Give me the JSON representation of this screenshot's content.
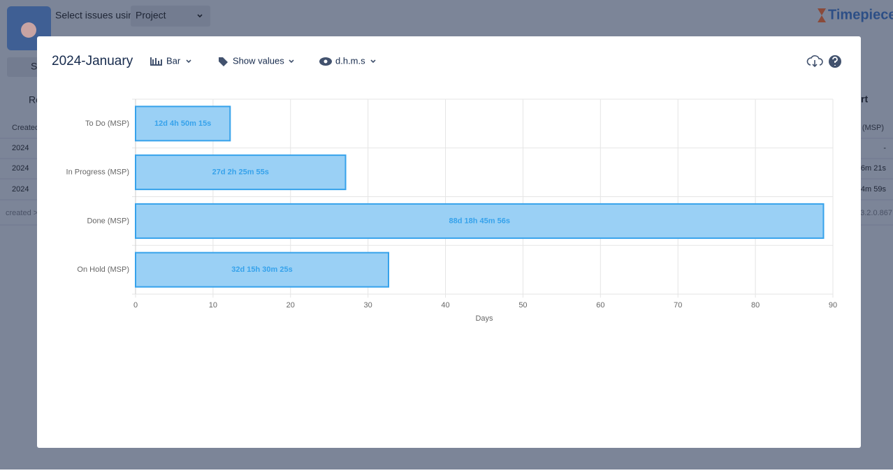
{
  "background": {
    "select_label": "Select issues using",
    "select_value": "Project",
    "brand": "Timepiece",
    "left_button_fragment": "Ro",
    "tab_fragment": "St",
    "right_button_fragment": "rt",
    "column_header": "Created",
    "column_header_right": "(MSP)",
    "rows": [
      [
        "2024",
        "-"
      ],
      [
        "2024",
        "6m 21s"
      ],
      [
        "2024",
        "4m 59s"
      ]
    ],
    "footer_left": "created >",
    "version": "3.2.0.867"
  },
  "modal": {
    "title": "2024-January",
    "chart_type_menu": "Bar",
    "values_menu": "Show values",
    "format_menu": "d.h.m.s"
  },
  "chart_data": {
    "type": "bar",
    "orientation": "horizontal",
    "categories": [
      "To Do (MSP)",
      "In Progress (MSP)",
      "Done (MSP)",
      "On Hold (MSP)"
    ],
    "values": [
      12.2016,
      27.1013,
      88.7819,
      32.6461
    ],
    "value_labels": [
      "12d 4h 50m 15s",
      "27d 2h 25m 55s",
      "88d 18h 45m 56s",
      "32d 15h 30m 25s"
    ],
    "color": "#9ad0f5",
    "border_color": "#36a2eb",
    "label_color": "#36a2eb",
    "xlim": [
      0,
      90
    ],
    "xticks": [
      0,
      10,
      20,
      30,
      40,
      50,
      60,
      70,
      80,
      90
    ],
    "xlabel": "Days",
    "grid": true
  }
}
